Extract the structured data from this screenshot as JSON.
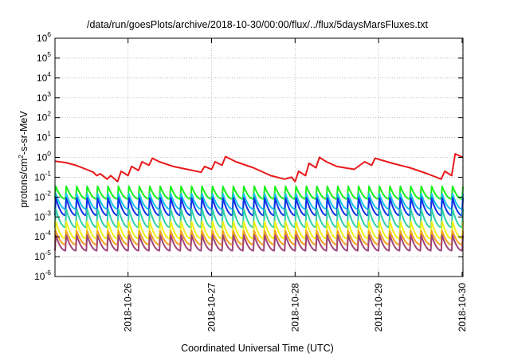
{
  "chart_data": {
    "type": "line",
    "title": "/data/run/goesPlots/archive/2018-10-30/00:00/flux/../flux/5daysMarsFluxes.txt",
    "xlabel": "Coordinated Universal Time (UTC)",
    "ylabel": {
      "prefix": "protons/cm",
      "sup": "2",
      "suffix": "-s-sr-MeV"
    },
    "y_scale": "log",
    "ylim": [
      1e-06,
      1000000.0
    ],
    "xlim": [
      "2018-10-25 03:00",
      "2018-10-30 00:15"
    ],
    "grid": true,
    "legend": "none",
    "x_ticks": [
      "2018-10-26",
      "2018-10-27",
      "2018-10-28",
      "2018-10-29",
      "2018-10-30"
    ],
    "y_ticks": [
      {
        "base": "10",
        "exp": "6"
      },
      {
        "base": "10",
        "exp": "5"
      },
      {
        "base": "10",
        "exp": "4"
      },
      {
        "base": "10",
        "exp": "3"
      },
      {
        "base": "10",
        "exp": "2"
      },
      {
        "base": "10",
        "exp": "1"
      },
      {
        "base": "10",
        "exp": "0"
      },
      {
        "base": "10",
        "exp": "-1"
      },
      {
        "base": "10",
        "exp": "-2"
      },
      {
        "base": "10",
        "exp": "-3"
      },
      {
        "base": "10",
        "exp": "-4"
      },
      {
        "base": "10",
        "exp": "-5"
      },
      {
        "base": "10",
        "exp": "-6"
      }
    ],
    "series": [
      {
        "color": "#e8191b",
        "kind": "slow",
        "points": [
          [
            "2018-10-25 03:00",
            0.65
          ],
          [
            "2018-10-25 06:00",
            0.55
          ],
          [
            "2018-10-25 09:00",
            0.4
          ],
          [
            "2018-10-25 12:00",
            0.25
          ],
          [
            "2018-10-25 14:00",
            0.18
          ],
          [
            "2018-10-25 15:00",
            0.12
          ],
          [
            "2018-10-25 16:00",
            0.15
          ],
          [
            "2018-10-25 18:00",
            0.08
          ],
          [
            "2018-10-25 19:00",
            0.12
          ],
          [
            "2018-10-25 21:00",
            0.06
          ],
          [
            "2018-10-25 22:00",
            0.2
          ],
          [
            "2018-10-26 00:00",
            0.12
          ],
          [
            "2018-10-26 01:00",
            0.35
          ],
          [
            "2018-10-26 03:00",
            0.22
          ],
          [
            "2018-10-26 04:00",
            0.6
          ],
          [
            "2018-10-26 06:00",
            0.4
          ],
          [
            "2018-10-26 07:00",
            0.9
          ],
          [
            "2018-10-26 09:00",
            0.6
          ],
          [
            "2018-10-26 13:00",
            0.35
          ],
          [
            "2018-10-26 17:00",
            0.25
          ],
          [
            "2018-10-26 21:00",
            0.18
          ],
          [
            "2018-10-26 22:00",
            0.35
          ],
          [
            "2018-10-27 00:00",
            0.25
          ],
          [
            "2018-10-27 01:00",
            0.6
          ],
          [
            "2018-10-27 03:00",
            0.4
          ],
          [
            "2018-10-27 04:00",
            1.1
          ],
          [
            "2018-10-27 07:00",
            0.6
          ],
          [
            "2018-10-27 12:00",
            0.3
          ],
          [
            "2018-10-27 17:00",
            0.12
          ],
          [
            "2018-10-27 21:00",
            0.08
          ],
          [
            "2018-10-27 23:00",
            0.1
          ],
          [
            "2018-10-28 00:00",
            0.06
          ],
          [
            "2018-10-28 01:00",
            0.2
          ],
          [
            "2018-10-28 03:00",
            0.12
          ],
          [
            "2018-10-28 04:00",
            0.5
          ],
          [
            "2018-10-28 06:00",
            0.3
          ],
          [
            "2018-10-28 07:00",
            1.0
          ],
          [
            "2018-10-28 09:00",
            0.6
          ],
          [
            "2018-10-28 12:00",
            0.35
          ],
          [
            "2018-10-28 17:00",
            0.25
          ],
          [
            "2018-10-28 20:00",
            0.6
          ],
          [
            "2018-10-28 22:00",
            0.4
          ],
          [
            "2018-10-28 23:00",
            0.9
          ],
          [
            "2018-10-29 04:00",
            0.5
          ],
          [
            "2018-10-29 09:00",
            0.3
          ],
          [
            "2018-10-29 14:00",
            0.15
          ],
          [
            "2018-10-29 18:00",
            0.08
          ],
          [
            "2018-10-29 19:00",
            0.2
          ],
          [
            "2018-10-29 21:00",
            0.12
          ],
          [
            "2018-10-29 22:00",
            1.5
          ],
          [
            "2018-10-30 00:15",
            1.0
          ]
        ]
      },
      {
        "color": "#19f019",
        "kind": "sawtooth",
        "high": 0.035,
        "low": 0.008
      },
      {
        "color": "#18c4e8",
        "kind": "sawtooth",
        "high": 0.015,
        "low": 0.0025
      },
      {
        "color": "#1432e6",
        "kind": "sawtooth",
        "high": 0.009,
        "low": 0.0012
      },
      {
        "color": "#2fd0a8",
        "kind": "sawtooth",
        "high": 0.0025,
        "low": 0.0003
      },
      {
        "color": "#f0f01a",
        "kind": "sawtooth",
        "high": 0.0006,
        "low": 8e-05
      },
      {
        "color": "#f2a21e",
        "kind": "sawtooth",
        "high": 0.0002,
        "low": 4e-05
      },
      {
        "color": "#a0447a",
        "kind": "sawtooth",
        "high": 0.00012,
        "low": 2e-05
      }
    ],
    "period_hours": 3
  }
}
